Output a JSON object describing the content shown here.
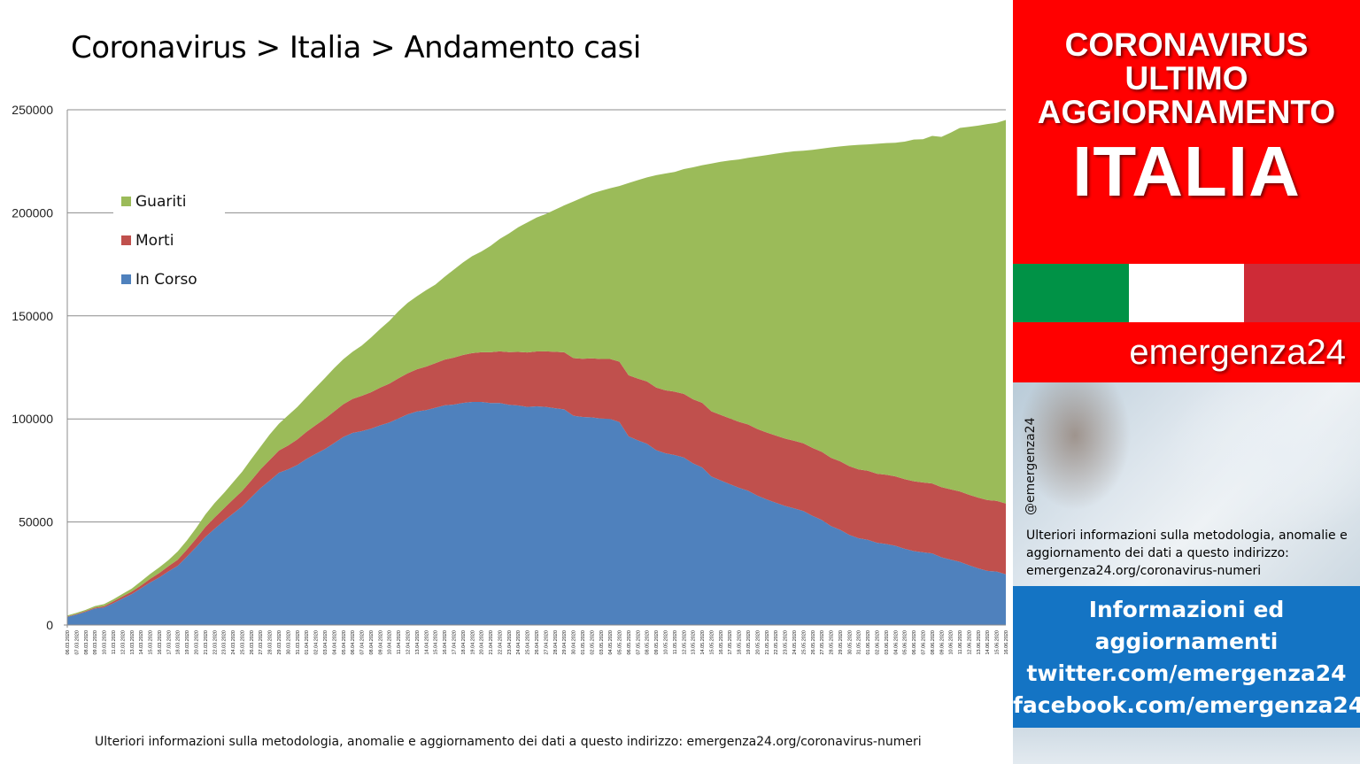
{
  "title": "Coronavirus > Italia > Andamento casi",
  "footer_note": "Ulteriori informazioni sulla metodologia, anomalie e aggiornamento dei dati a questo indirizzo: emergenza24.org/coronavirus-numeri",
  "panel": {
    "header_lines": [
      "CORONAVIRUS",
      "ULTIMO",
      "AGGIORNAMENTO"
    ],
    "header_big": "ITALIA",
    "flag_colors": [
      "#009246",
      "#ffffff",
      "#ce2b37"
    ],
    "brand": "emergenza24",
    "handle": "@emergenza24",
    "note": "Ulteriori informazioni sulla metodologia, anomalie e aggiornamento dei dati a questo indirizzo: emergenza24.org/coronavirus-numeri",
    "info_lines": [
      "Informazioni ed",
      "aggiornamenti",
      "twitter.com/emergenza24",
      "facebook.com/emergenza24"
    ]
  },
  "chart_data": {
    "type": "area",
    "stacked": true,
    "title": "Coronavirus > Italia > Andamento casi",
    "ylim": [
      0,
      250000
    ],
    "yticks": [
      0,
      50000,
      100000,
      150000,
      200000,
      250000
    ],
    "grid": "horizontal",
    "legend_position": "top-left",
    "x_start": "06.03.2020",
    "x_end": "17.06.2020",
    "x_step_days": 1,
    "series": [
      {
        "name": "In Corso",
        "color": "#4f81bd",
        "values": [
          3916,
          5061,
          6387,
          7985,
          8514,
          10590,
          12839,
          14955,
          17750,
          20603,
          23073,
          26062,
          28710,
          33190,
          37860,
          42681,
          46638,
          50418,
          54030,
          57521,
          62013,
          66414,
          70065,
          73880,
          75528,
          77635,
          80572,
          83049,
          85388,
          88274,
          91246,
          93187,
          94067,
          95262,
          96877,
          98273,
          100269,
          102253,
          103616,
          104291,
          105418,
          106607,
          106962,
          107771,
          108257,
          108237,
          107709,
          107699,
          106848,
          106527,
          105847,
          106103,
          105813,
          105205,
          104657,
          101551,
          100943,
          100704,
          100179,
          99980,
          98467,
          91528,
          89624,
          87961,
          84842,
          83324,
          82488,
          81266,
          78457,
          76440,
          72070,
          70187,
          68351,
          66553,
          65129,
          62752,
          60960,
          59322,
          57752,
          56594,
          55300,
          52942,
          50966,
          47986,
          46175,
          43691,
          42075,
          41367,
          39893,
          39297,
          38429,
          36976,
          35877,
          35262,
          34730,
          32872,
          31710,
          30637,
          28997,
          27485,
          26274,
          25909,
          24569
        ]
      },
      {
        "name": "Morti",
        "color": "#c0504d",
        "values": [
          197,
          233,
          366,
          463,
          631,
          827,
          1016,
          1266,
          1441,
          1809,
          2158,
          2503,
          2978,
          3405,
          4032,
          4825,
          5476,
          6077,
          6820,
          7503,
          8165,
          9134,
          10023,
          10779,
          11591,
          12428,
          13155,
          13915,
          14681,
          15362,
          15887,
          16523,
          17127,
          17669,
          18279,
          18849,
          19468,
          19899,
          20465,
          21067,
          21645,
          22170,
          22745,
          23227,
          23660,
          24114,
          24648,
          25085,
          25549,
          25969,
          26384,
          26644,
          26977,
          27359,
          27682,
          27967,
          28236,
          28710,
          28884,
          29079,
          29315,
          29684,
          29958,
          30201,
          30395,
          30560,
          30739,
          30911,
          31106,
          31368,
          31610,
          31763,
          31908,
          32007,
          32169,
          32330,
          32486,
          32616,
          32735,
          32785,
          32877,
          32955,
          33072,
          33142,
          33229,
          33340,
          33415,
          33475,
          33530,
          33601,
          33689,
          33774,
          33846,
          33899,
          33964,
          34043,
          34114,
          34167,
          34223,
          34301,
          34345,
          34354,
          34371
        ]
      },
      {
        "name": "Guariti",
        "color": "#9bbb59",
        "values": [
          523,
          589,
          622,
          724,
          1004,
          1045,
          1258,
          1439,
          1966,
          2335,
          2749,
          2941,
          4025,
          4440,
          5129,
          6072,
          7024,
          7432,
          8326,
          9362,
          10361,
          10950,
          12384,
          13030,
          14620,
          15729,
          16847,
          18278,
          19758,
          20996,
          21815,
          22837,
          24392,
          26491,
          28470,
          30455,
          32534,
          34211,
          35435,
          37130,
          38092,
          40164,
          42727,
          44927,
          47055,
          48877,
          51600,
          54543,
          57576,
          60498,
          63120,
          64928,
          66624,
          68941,
          71252,
          75945,
          78249,
          79914,
          81654,
          82879,
          85231,
          93245,
          96276,
          99023,
          103031,
          105186,
          106587,
          109039,
          112541,
          115288,
          120205,
          122810,
          125176,
          127326,
          129401,
          132282,
          134560,
          136720,
          138840,
          140479,
          141981,
          144658,
          147101,
          150604,
          152844,
          155633,
          157507,
          158355,
          160092,
          160938,
          161895,
          163781,
          165837,
          166584,
          168646,
          169939,
          173085,
          176370,
          178526,
          180544,
          182453,
          183426,
          186111
        ]
      }
    ]
  }
}
